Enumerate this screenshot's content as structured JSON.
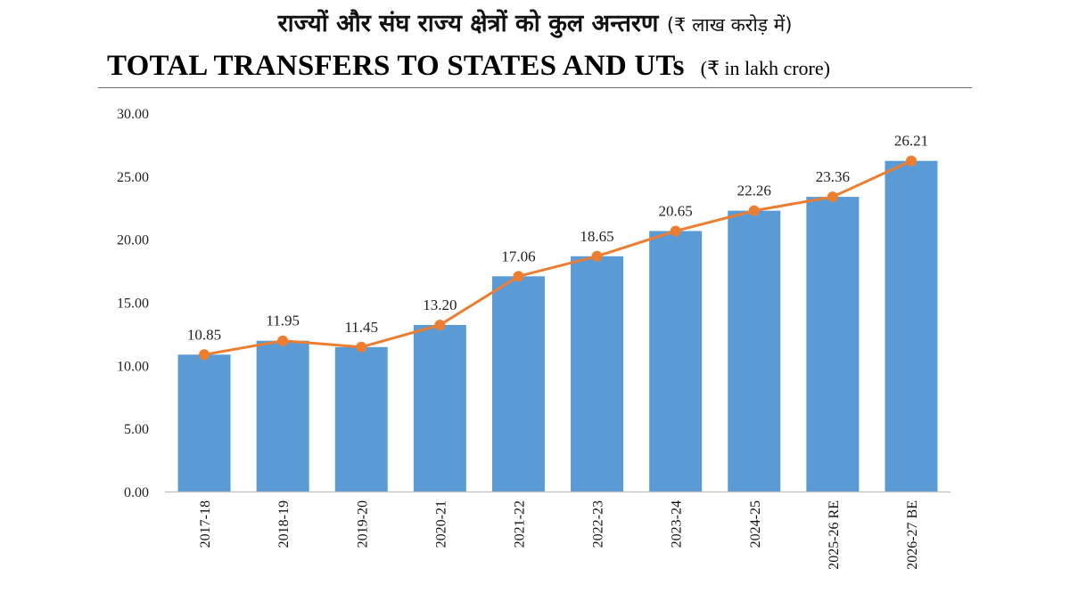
{
  "header": {
    "hindi_title": "राज्यों और संघ राज्य क्षेत्रों को कुल अन्तरण",
    "hindi_unit": "(₹ लाख करोड़ में)",
    "english_title": "TOTAL TRANSFERS TO STATES AND UTs",
    "english_unit": "(₹ in lakh crore)"
  },
  "chart_data": {
    "type": "bar",
    "title": "TOTAL TRANSFERS TO STATES AND UTs",
    "xlabel": "",
    "ylabel": "₹ in lakh crore",
    "categories": [
      "2017-18",
      "2018-19",
      "2019-20",
      "2020-21",
      "2021-22",
      "2022-23",
      "2023-24",
      "2024-25",
      "2025-26 RE",
      "2026-27 BE"
    ],
    "series": [
      {
        "name": "Total transfers (bar)",
        "kind": "bar",
        "values": [
          10.85,
          11.95,
          11.45,
          13.2,
          17.06,
          18.65,
          20.65,
          22.26,
          23.36,
          26.21
        ]
      },
      {
        "name": "Total transfers (line)",
        "kind": "line",
        "values": [
          10.85,
          11.95,
          11.45,
          13.2,
          17.06,
          18.65,
          20.65,
          22.26,
          23.36,
          26.21
        ]
      }
    ],
    "data_labels": [
      "10.85",
      "11.95",
      "11.45",
      "13.20",
      "17.06",
      "18.65",
      "20.65",
      "22.26",
      "23.36",
      "26.21"
    ],
    "y_ticks": [
      "0.00",
      "5.00",
      "10.00",
      "15.00",
      "20.00",
      "25.00",
      "30.00"
    ],
    "ylim": [
      0,
      30
    ],
    "grid": false,
    "legend": "none",
    "colors": {
      "bar": "#5b9bd5",
      "line": "#ed7d31",
      "axis": "#bfbfbf"
    }
  }
}
